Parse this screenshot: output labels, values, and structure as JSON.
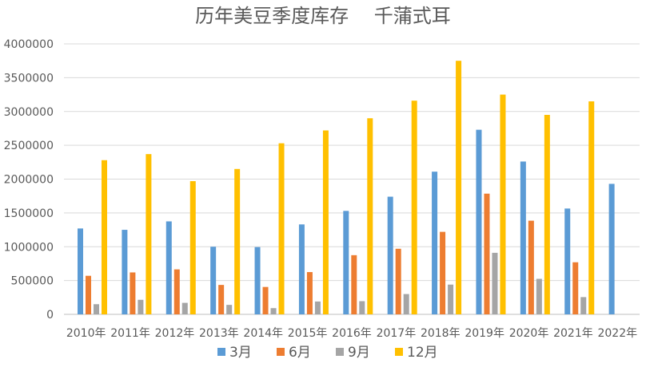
{
  "chart_data": {
    "type": "bar",
    "title": "历年美豆季度库存　 千蒲式耳",
    "categories": [
      "2010年",
      "2011年",
      "2012年",
      "2013年",
      "2014年",
      "2015年",
      "2016年",
      "2017年",
      "2018年",
      "2019年",
      "2020年",
      "2021年",
      "2022年"
    ],
    "series": [
      {
        "name": "3月",
        "color": "#5B9BD5",
        "values": [
          1270000,
          1250000,
          1375000,
          1000000,
          995000,
          1330000,
          1530000,
          1740000,
          2110000,
          2730000,
          2260000,
          1565000,
          1930000
        ]
      },
      {
        "name": "6月",
        "color": "#ED7D31",
        "values": [
          570000,
          620000,
          665000,
          435000,
          405000,
          625000,
          875000,
          970000,
          1220000,
          1785000,
          1385000,
          770000,
          null
        ]
      },
      {
        "name": "9月",
        "color": "#A5A5A5",
        "values": [
          150000,
          215000,
          170000,
          140000,
          92000,
          190000,
          195000,
          300000,
          440000,
          910000,
          525000,
          255000,
          null
        ]
      },
      {
        "name": "12月",
        "color": "#FFC000",
        "values": [
          2280000,
          2370000,
          1970000,
          2150000,
          2530000,
          2720000,
          2900000,
          3160000,
          3750000,
          3250000,
          2950000,
          3150000,
          null
        ]
      }
    ],
    "ylim": [
      0,
      4000000
    ],
    "yticks": [
      0,
      500000,
      1000000,
      1500000,
      2000000,
      2500000,
      3000000,
      3500000,
      4000000
    ],
    "grid": true,
    "legend_position": "bottom"
  }
}
